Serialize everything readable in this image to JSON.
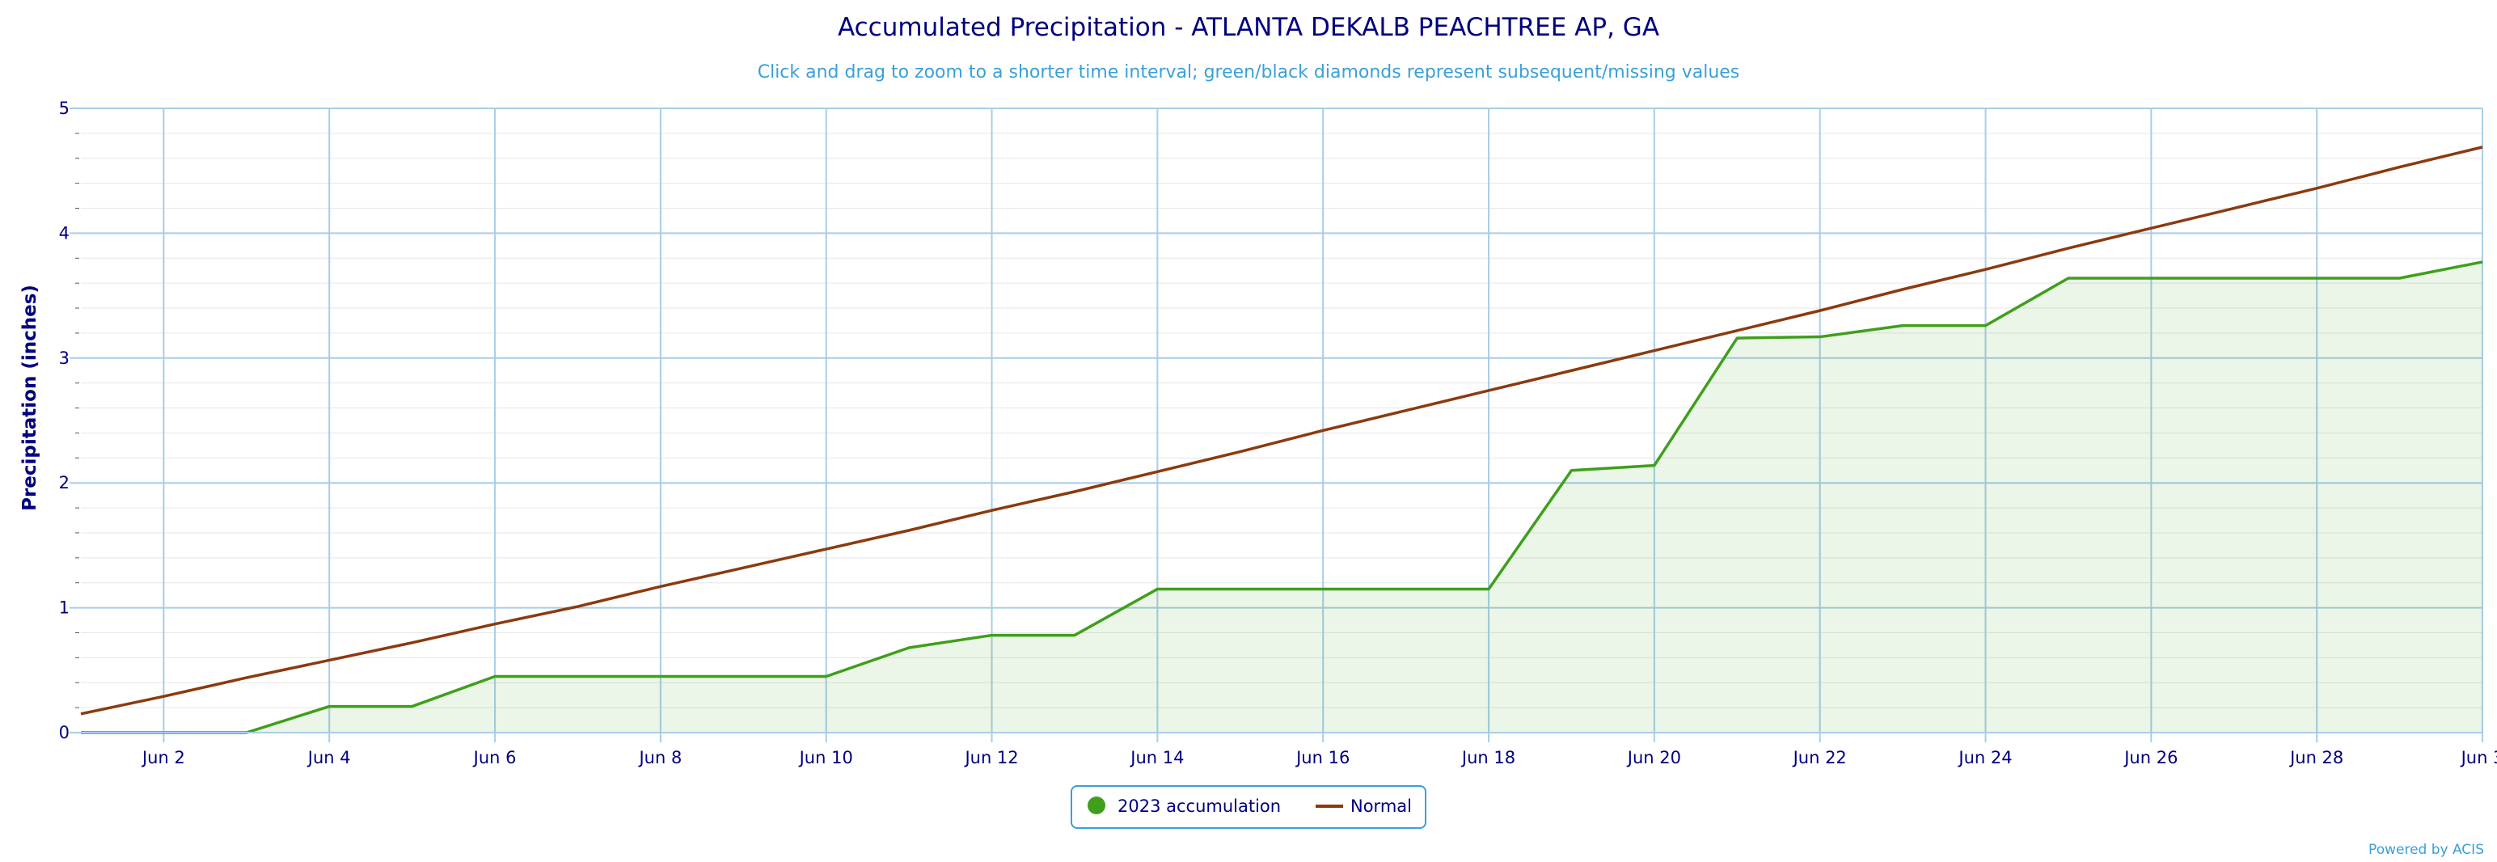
{
  "colors": {
    "title": "#000080",
    "subtitle": "#3aa0d8",
    "axis_text": "#000080",
    "grid_major": "#a8cde8",
    "grid_minor": "#e6e6e6",
    "accumulation_line": "#3f9f1a",
    "accumulation_fill": "#3f9f1a",
    "normal_line": "#8b3a0f",
    "legend_border": "#3aa0d8",
    "credit": "#3aa0d8"
  },
  "chart_data": {
    "type": "area",
    "title": "Accumulated Precipitation - ATLANTA DEKALB PEACHTREE AP, GA",
    "subtitle": "Click and drag to zoom to a shorter time interval; green/black diamonds represent subsequent/missing values",
    "xlabel": "",
    "ylabel": "Precipitation (inches)",
    "x_start_day": 1,
    "x_end_day": 30,
    "ylim": [
      0,
      5
    ],
    "y_ticks": [
      0,
      1,
      2,
      3,
      4,
      5
    ],
    "y_tick_labels": [
      "0",
      "1",
      "2",
      "3",
      "4",
      "5"
    ],
    "y_minor_step": 0.2,
    "x_ticks": [
      2,
      4,
      6,
      8,
      10,
      12,
      14,
      16,
      18,
      20,
      22,
      24,
      26,
      28,
      30
    ],
    "x_tick_labels": [
      "Jun 2",
      "Jun 4",
      "Jun 6",
      "Jun 8",
      "Jun 10",
      "Jun 12",
      "Jun 14",
      "Jun 16",
      "Jun 18",
      "Jun 20",
      "Jun 22",
      "Jun 24",
      "Jun 26",
      "Jun 28",
      "Jun 3"
    ],
    "grid": true,
    "legend_position": "bottom-center",
    "series": [
      {
        "name": "2023 accumulation",
        "type": "area",
        "color": "#3f9f1a",
        "marker": "circle",
        "days": [
          1,
          2,
          3,
          4,
          5,
          6,
          7,
          8,
          9,
          10,
          11,
          12,
          13,
          14,
          15,
          16,
          17,
          18,
          19,
          20,
          21,
          22,
          23,
          24,
          25,
          26,
          27,
          28,
          29,
          30
        ],
        "values": [
          0.0,
          0.0,
          0.0,
          0.21,
          0.21,
          0.45,
          0.45,
          0.45,
          0.45,
          0.45,
          0.68,
          0.78,
          0.78,
          1.15,
          1.15,
          1.15,
          1.15,
          1.15,
          2.1,
          2.14,
          3.16,
          3.17,
          3.26,
          3.26,
          3.64,
          3.64,
          3.64,
          3.64,
          3.64,
          3.77
        ]
      },
      {
        "name": "Normal",
        "type": "line",
        "color": "#8b3a0f",
        "marker": "line",
        "days": [
          1,
          2,
          3,
          4,
          5,
          6,
          7,
          8,
          9,
          10,
          11,
          12,
          13,
          14,
          15,
          16,
          17,
          18,
          19,
          20,
          21,
          22,
          23,
          24,
          25,
          26,
          27,
          28,
          29,
          30
        ],
        "values": [
          0.15,
          0.29,
          0.44,
          0.58,
          0.72,
          0.87,
          1.01,
          1.17,
          1.32,
          1.47,
          1.62,
          1.78,
          1.93,
          2.09,
          2.25,
          2.42,
          2.58,
          2.74,
          2.9,
          3.06,
          3.22,
          3.38,
          3.55,
          3.71,
          3.88,
          4.04,
          4.2,
          4.36,
          4.53,
          4.69
        ]
      }
    ]
  },
  "credit": {
    "label": "Powered by ACIS"
  }
}
